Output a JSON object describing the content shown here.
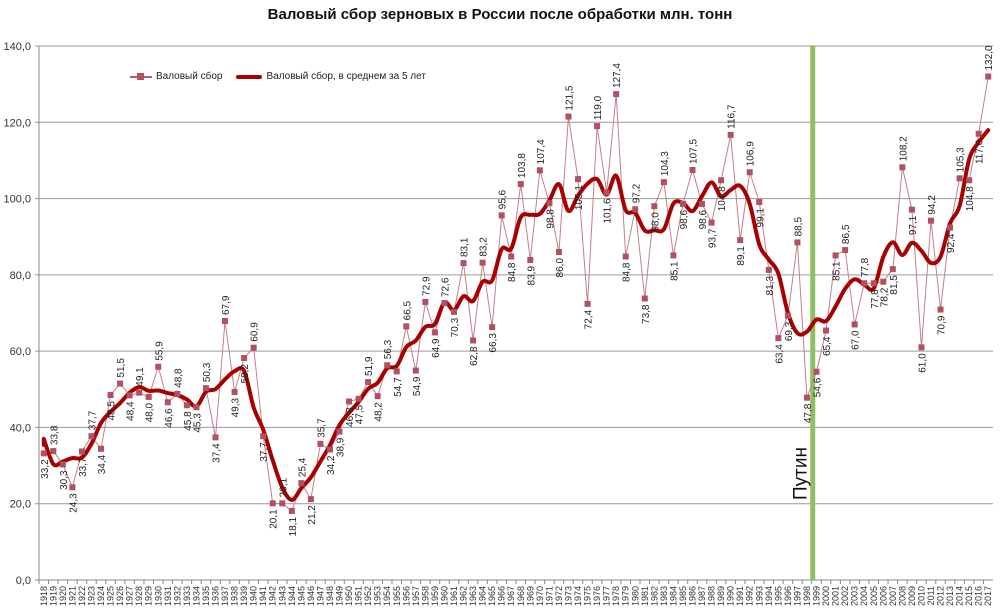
{
  "chart_data": {
    "type": "line",
    "title": "Валовый сбор зерновых в России после обработки  млн. тонн",
    "xlabel": "",
    "ylabel": "",
    "ylim": [
      0,
      140
    ],
    "y_ticks": [
      "0,0",
      "20,0",
      "40,0",
      "60,0",
      "80,0",
      "100,0",
      "120,0",
      "140,0"
    ],
    "grid": true,
    "legend_position": "top-left",
    "legend": [
      "Валовый сбор",
      "Валовый сбор, в среднем  за 5 лет"
    ],
    "annotation": {
      "text": "Путин",
      "year": 1999,
      "line_color": "#8dc060"
    },
    "x": [
      1918,
      1919,
      1920,
      1921,
      1922,
      1923,
      1924,
      1925,
      1926,
      1927,
      1928,
      1929,
      1930,
      1931,
      1932,
      1933,
      1934,
      1935,
      1936,
      1937,
      1938,
      1939,
      1940,
      1941,
      1942,
      1943,
      1944,
      1945,
      1946,
      1947,
      1948,
      1949,
      1950,
      1951,
      1952,
      1953,
      1954,
      1955,
      1956,
      1957,
      1958,
      1959,
      1960,
      1961,
      1962,
      1963,
      1964,
      1965,
      1966,
      1967,
      1968,
      1969,
      1970,
      1971,
      1972,
      1973,
      1974,
      1975,
      1976,
      1977,
      1978,
      1979,
      1980,
      1981,
      1982,
      1983,
      1984,
      1985,
      1986,
      1987,
      1988,
      1989,
      1990,
      1991,
      1992,
      1993,
      1994,
      1995,
      1996,
      1997,
      1998,
      1999,
      2000,
      2001,
      2002,
      2003,
      2004,
      2005,
      2006,
      2007,
      2008,
      2009,
      2010,
      2011,
      2012,
      2013,
      2014,
      2015,
      2016,
      2017
    ],
    "series": [
      {
        "name": "Валовый сбор",
        "color": "#b05060",
        "values": [
          33.2,
          33.8,
          30.3,
          24.3,
          33.7,
          37.7,
          34.4,
          48.5,
          51.5,
          48.4,
          49.1,
          48.0,
          55.9,
          46.6,
          48.8,
          45.8,
          45.3,
          50.3,
          37.4,
          67.9,
          49.3,
          58.2,
          60.9,
          37.7,
          20.1,
          20.1,
          18.1,
          25.4,
          21.2,
          35.7,
          34.2,
          38.9,
          46.8,
          47.5,
          51.9,
          48.2,
          56.3,
          54.7,
          66.5,
          54.9,
          72.9,
          64.9,
          72.6,
          70.3,
          83.1,
          62.8,
          83.2,
          66.3,
          95.6,
          84.8,
          103.8,
          83.9,
          107.4,
          98.8,
          86.0,
          121.5,
          105.1,
          72.4,
          119.0,
          101.6,
          127.4,
          84.8,
          97.2,
          73.8,
          98.0,
          104.3,
          85.1,
          98.6,
          107.5,
          98.6,
          93.7,
          104.8,
          116.7,
          89.1,
          106.9,
          99.1,
          81.3,
          63.4,
          69.3,
          88.5,
          47.8,
          54.6,
          65.4,
          85.1,
          86.5,
          67.0,
          77.8,
          77.8,
          78.2,
          81.5,
          108.2,
          97.1,
          61.0,
          94.2,
          70.9,
          92.4,
          105.3,
          104.8,
          117.0,
          132.0
        ]
      },
      {
        "name": "Валовый сбор, в среднем  за 5 лет",
        "color": "#a80000",
        "smoothing": "moving average (5 yr)",
        "values": []
      }
    ]
  }
}
